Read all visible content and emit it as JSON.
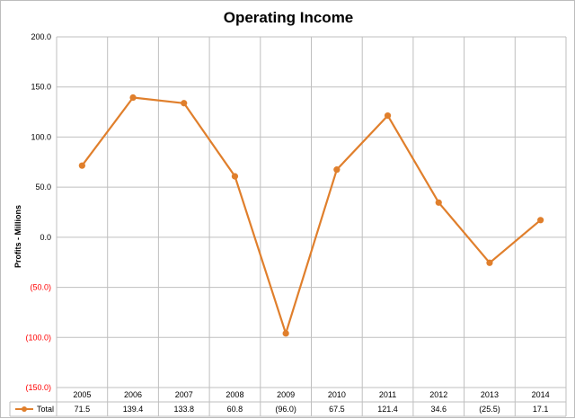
{
  "chart_data": {
    "type": "line",
    "title": "Operating Income",
    "ylabel": "Profits - Millions",
    "xlabel": "",
    "ylim": [
      -150,
      200
    ],
    "ytick_values": [
      200,
      150,
      100,
      50,
      0,
      -50,
      -100,
      -150
    ],
    "ytick_labels": [
      "200.0",
      "150.0",
      "100.0",
      "50.0",
      "0.0",
      "(50.0)",
      "(100.0)",
      "(150.0)"
    ],
    "categories": [
      "2005",
      "2006",
      "2007",
      "2008",
      "2009",
      "2010",
      "2011",
      "2012",
      "2013",
      "2014"
    ],
    "series": [
      {
        "name": "Total",
        "values": [
          71.5,
          139.4,
          133.8,
          60.8,
          -96.0,
          67.5,
          121.4,
          34.6,
          -25.5,
          17.1
        ],
        "labels": [
          "71.5",
          "139.4",
          "133.8",
          "60.8",
          "(96.0)",
          "67.5",
          "121.4",
          "34.6",
          "(25.5)",
          "17.1"
        ]
      }
    ],
    "grid": true,
    "legend": "data-table",
    "colors": {
      "series": "#E07F2C",
      "negative_tick": "#ff0000",
      "positive_tick": "#000000",
      "grid": "#bfbfbf"
    }
  }
}
